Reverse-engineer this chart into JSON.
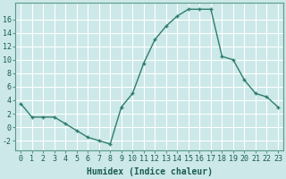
{
  "x": [
    0,
    1,
    2,
    3,
    4,
    5,
    6,
    7,
    8,
    9,
    10,
    11,
    12,
    13,
    14,
    15,
    16,
    17,
    18,
    19,
    20,
    21,
    22,
    23
  ],
  "y": [
    3.5,
    1.5,
    1.5,
    1.5,
    0.5,
    -0.5,
    -1.5,
    -2.0,
    -2.5,
    3.0,
    5.0,
    9.5,
    13.0,
    15.0,
    16.5,
    17.5,
    17.5,
    17.5,
    10.5,
    10.0,
    7.0,
    5.0,
    4.5,
    3.0
  ],
  "line_color": "#2e7d6e",
  "marker": "+",
  "marker_size": 3,
  "bg_color": "#cce8e8",
  "grid_color": "#ffffff",
  "xlabel": "Humidex (Indice chaleur)",
  "xlim": [
    -0.5,
    23.5
  ],
  "ylim": [
    -3.5,
    18.5
  ],
  "yticks": [
    -2,
    0,
    2,
    4,
    6,
    8,
    10,
    12,
    14,
    16
  ],
  "xticks": [
    0,
    1,
    2,
    3,
    4,
    5,
    6,
    7,
    8,
    9,
    10,
    11,
    12,
    13,
    14,
    15,
    16,
    17,
    18,
    19,
    20,
    21,
    22,
    23
  ],
  "xtick_labels": [
    "0",
    "1",
    "2",
    "3",
    "4",
    "5",
    "6",
    "7",
    "8",
    "9",
    "10",
    "11",
    "12",
    "13",
    "14",
    "15",
    "16",
    "17",
    "18",
    "19",
    "20",
    "21",
    "22",
    "23"
  ],
  "xlabel_fontsize": 7,
  "tick_fontsize": 6,
  "line_width": 1.0,
  "title_color": "#1a5c52",
  "spine_color": "#5a9a8a"
}
